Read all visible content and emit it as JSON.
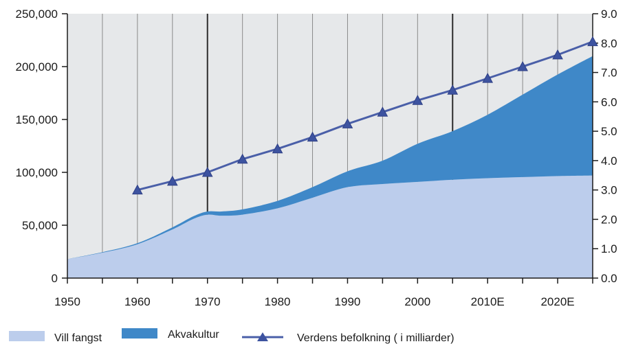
{
  "chart_data": {
    "type": "area",
    "x_ticks": [
      "1950",
      "1960",
      "1970",
      "1980",
      "1990",
      "2000",
      "2010E",
      "2020E"
    ],
    "y_left_ticks": [
      "0",
      "50,000",
      "100,000",
      "150,000",
      "200,000",
      "250,000"
    ],
    "y_right_ticks": [
      "0.0",
      "1.0",
      "2.0",
      "3.0",
      "4.0",
      "5.0",
      "6.0",
      "7.0",
      "8.0",
      "9.0"
    ],
    "ylim_left": [
      0,
      250000
    ],
    "ylim_right": [
      0,
      9
    ],
    "xlim": [
      1950,
      2025
    ],
    "grid": "vertical lines every 5 years",
    "legend_position": "bottom",
    "colors": {
      "plot_background": "#e6e8ea",
      "wild_catch": "#bccdec",
      "aquaculture": "#3f88c8",
      "population_line": "#4a5fa8",
      "population_marker": "#3d53a0"
    },
    "series": [
      {
        "name": "Vill fangst",
        "axis": "left",
        "x": [
          1950,
          1955,
          1960,
          1965,
          1968,
          1970,
          1972,
          1975,
          1980,
          1985,
          1990,
          1995,
          2000,
          2005,
          2010,
          2015,
          2020,
          2025
        ],
        "values": [
          18000,
          24000,
          32000,
          46000,
          56000,
          60000,
          59000,
          60000,
          66000,
          76000,
          86000,
          89000,
          91000,
          93000,
          94500,
          95500,
          96500,
          97000
        ]
      },
      {
        "name": "Akvakultur",
        "axis": "left",
        "stacked_on": "Vill fangst",
        "x": [
          1950,
          1955,
          1960,
          1965,
          1968,
          1970,
          1972,
          1975,
          1980,
          1985,
          1990,
          1995,
          2000,
          2005,
          2010,
          2015,
          2020,
          2025
        ],
        "values": [
          0,
          500,
          1000,
          2000,
          2500,
          3000,
          4000,
          5000,
          7000,
          10000,
          15000,
          22000,
          36000,
          46000,
          60000,
          78000,
          96000,
          113000
        ]
      },
      {
        "name": "Verdens befolkning ( i milliarder)",
        "axis": "right",
        "x": [
          1960,
          1965,
          1970,
          1975,
          1980,
          1985,
          1990,
          1995,
          2000,
          2005,
          2010,
          2015,
          2020,
          2025
        ],
        "values": [
          3.0,
          3.3,
          3.6,
          4.05,
          4.4,
          4.8,
          5.25,
          5.65,
          6.05,
          6.4,
          6.8,
          7.2,
          7.6,
          8.05
        ]
      }
    ]
  },
  "legend": [
    {
      "label": "Vill fangst",
      "kind": "area",
      "color": "#bccdec"
    },
    {
      "label": "Akvakultur",
      "kind": "area",
      "color": "#3f88c8"
    },
    {
      "label": "Verdens befolkning ( i milliarder)",
      "kind": "line-marker",
      "color": "#4a5fa8"
    }
  ]
}
